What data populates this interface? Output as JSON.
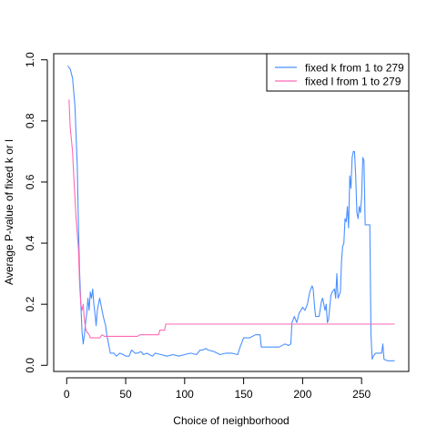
{
  "chart_data": {
    "type": "line",
    "title": "",
    "xlabel": "Choice of neighborhood",
    "ylabel": "Average P-value of fixed k or l",
    "xlim": [
      -11,
      290
    ],
    "ylim": [
      -0.02,
      1.02
    ],
    "x_ticks": [
      0,
      50,
      100,
      150,
      200,
      250
    ],
    "x_tick_labels": [
      "0",
      "50",
      "100",
      "150",
      "200",
      "250"
    ],
    "y_ticks": [
      0.0,
      0.2,
      0.4,
      0.6,
      0.8,
      1.0
    ],
    "y_tick_labels": [
      "0.0",
      "0.2",
      "0.4",
      "0.6",
      "0.8",
      "1.0"
    ],
    "legend_position": "top-right",
    "grid": false,
    "series": [
      {
        "name": "fixed k from 1 to 279",
        "color": "#4a90ff",
        "points": [
          [
            1,
            0.98
          ],
          [
            3,
            0.97
          ],
          [
            5,
            0.94
          ],
          [
            7,
            0.85
          ],
          [
            9,
            0.65
          ],
          [
            10,
            0.45
          ],
          [
            11,
            0.3
          ],
          [
            12,
            0.2
          ],
          [
            13,
            0.11
          ],
          [
            14,
            0.07
          ],
          [
            15,
            0.1
          ],
          [
            16,
            0.14
          ],
          [
            17,
            0.17
          ],
          [
            18,
            0.22
          ],
          [
            19,
            0.18
          ],
          [
            20,
            0.24
          ],
          [
            21,
            0.22
          ],
          [
            22,
            0.25
          ],
          [
            23,
            0.2
          ],
          [
            24,
            0.17
          ],
          [
            25,
            0.13
          ],
          [
            26,
            0.18
          ],
          [
            27,
            0.2
          ],
          [
            28,
            0.22
          ],
          [
            29,
            0.2
          ],
          [
            30,
            0.18
          ],
          [
            31,
            0.16
          ],
          [
            33,
            0.13
          ],
          [
            34,
            0.1
          ],
          [
            35,
            0.08
          ],
          [
            36,
            0.06
          ],
          [
            37,
            0.04
          ],
          [
            40,
            0.04
          ],
          [
            42,
            0.03
          ],
          [
            45,
            0.04
          ],
          [
            48,
            0.035
          ],
          [
            50,
            0.03
          ],
          [
            53,
            0.03
          ],
          [
            55,
            0.05
          ],
          [
            58,
            0.04
          ],
          [
            60,
            0.04
          ],
          [
            63,
            0.045
          ],
          [
            65,
            0.035
          ],
          [
            68,
            0.04
          ],
          [
            70,
            0.035
          ],
          [
            73,
            0.03
          ],
          [
            75,
            0.04
          ],
          [
            80,
            0.035
          ],
          [
            85,
            0.03
          ],
          [
            90,
            0.035
          ],
          [
            95,
            0.03
          ],
          [
            100,
            0.035
          ],
          [
            105,
            0.04
          ],
          [
            110,
            0.035
          ],
          [
            113,
            0.05
          ],
          [
            115,
            0.05
          ],
          [
            118,
            0.055
          ],
          [
            120,
            0.05
          ],
          [
            125,
            0.045
          ],
          [
            130,
            0.035
          ],
          [
            135,
            0.04
          ],
          [
            140,
            0.04
          ],
          [
            145,
            0.035
          ],
          [
            147,
            0.06
          ],
          [
            148,
            0.07
          ],
          [
            150,
            0.09
          ],
          [
            155,
            0.09
          ],
          [
            160,
            0.1
          ],
          [
            164,
            0.1
          ],
          [
            165,
            0.06
          ],
          [
            170,
            0.06
          ],
          [
            175,
            0.06
          ],
          [
            180,
            0.06
          ],
          [
            185,
            0.07
          ],
          [
            188,
            0.065
          ],
          [
            190,
            0.07
          ],
          [
            191,
            0.14
          ],
          [
            193,
            0.16
          ],
          [
            195,
            0.14
          ],
          [
            197,
            0.17
          ],
          [
            200,
            0.19
          ],
          [
            202,
            0.18
          ],
          [
            204,
            0.2
          ],
          [
            206,
            0.24
          ],
          [
            208,
            0.26
          ],
          [
            209,
            0.25
          ],
          [
            210,
            0.2
          ],
          [
            211,
            0.16
          ],
          [
            214,
            0.16
          ],
          [
            216,
            0.21
          ],
          [
            217,
            0.22
          ],
          [
            218,
            0.2
          ],
          [
            219,
            0.18
          ],
          [
            220,
            0.2
          ],
          [
            221,
            0.14
          ],
          [
            222,
            0.15
          ],
          [
            224,
            0.23
          ],
          [
            225,
            0.24
          ],
          [
            227,
            0.25
          ],
          [
            228,
            0.22
          ],
          [
            229,
            0.3
          ],
          [
            230,
            0.22
          ],
          [
            232,
            0.24
          ],
          [
            233,
            0.34
          ],
          [
            234,
            0.39
          ],
          [
            235,
            0.4
          ],
          [
            236,
            0.48
          ],
          [
            237,
            0.47
          ],
          [
            238,
            0.52
          ],
          [
            239,
            0.45
          ],
          [
            240,
            0.62
          ],
          [
            241,
            0.58
          ],
          [
            242,
            0.68
          ],
          [
            243,
            0.7
          ],
          [
            244,
            0.7
          ],
          [
            245,
            0.62
          ],
          [
            246,
            0.5
          ],
          [
            247,
            0.48
          ],
          [
            248,
            0.52
          ],
          [
            249,
            0.5
          ],
          [
            250,
            0.55
          ],
          [
            251,
            0.68
          ],
          [
            252,
            0.67
          ],
          [
            253,
            0.46
          ],
          [
            255,
            0.46
          ],
          [
            257,
            0.46
          ],
          [
            258,
            0.1
          ],
          [
            259,
            0.02
          ],
          [
            260,
            0.03
          ],
          [
            262,
            0.04
          ],
          [
            265,
            0.04
          ],
          [
            267,
            0.04
          ],
          [
            268,
            0.07
          ],
          [
            269,
            0.02
          ],
          [
            272,
            0.015
          ],
          [
            275,
            0.015
          ],
          [
            278,
            0.015
          ]
        ]
      },
      {
        "name": "fixed l from 1 to 279",
        "color": "#ff69b4",
        "points": [
          [
            2,
            0.87
          ],
          [
            3,
            0.78
          ],
          [
            5,
            0.7
          ],
          [
            6,
            0.62
          ],
          [
            8,
            0.48
          ],
          [
            10,
            0.38
          ],
          [
            11,
            0.26
          ],
          [
            12,
            0.2
          ],
          [
            13,
            0.18
          ],
          [
            14,
            0.2
          ],
          [
            15,
            0.15
          ],
          [
            16,
            0.12
          ],
          [
            17,
            0.11
          ],
          [
            19,
            0.1
          ],
          [
            20,
            0.09
          ],
          [
            25,
            0.09
          ],
          [
            28,
            0.09
          ],
          [
            30,
            0.1
          ],
          [
            32,
            0.095
          ],
          [
            35,
            0.095
          ],
          [
            50,
            0.095
          ],
          [
            60,
            0.095
          ],
          [
            62,
            0.1
          ],
          [
            70,
            0.1
          ],
          [
            78,
            0.1
          ],
          [
            79,
            0.115
          ],
          [
            83,
            0.115
          ],
          [
            84,
            0.135
          ],
          [
            100,
            0.135
          ],
          [
            150,
            0.135
          ],
          [
            200,
            0.135
          ],
          [
            250,
            0.135
          ],
          [
            278,
            0.135
          ]
        ]
      }
    ]
  }
}
